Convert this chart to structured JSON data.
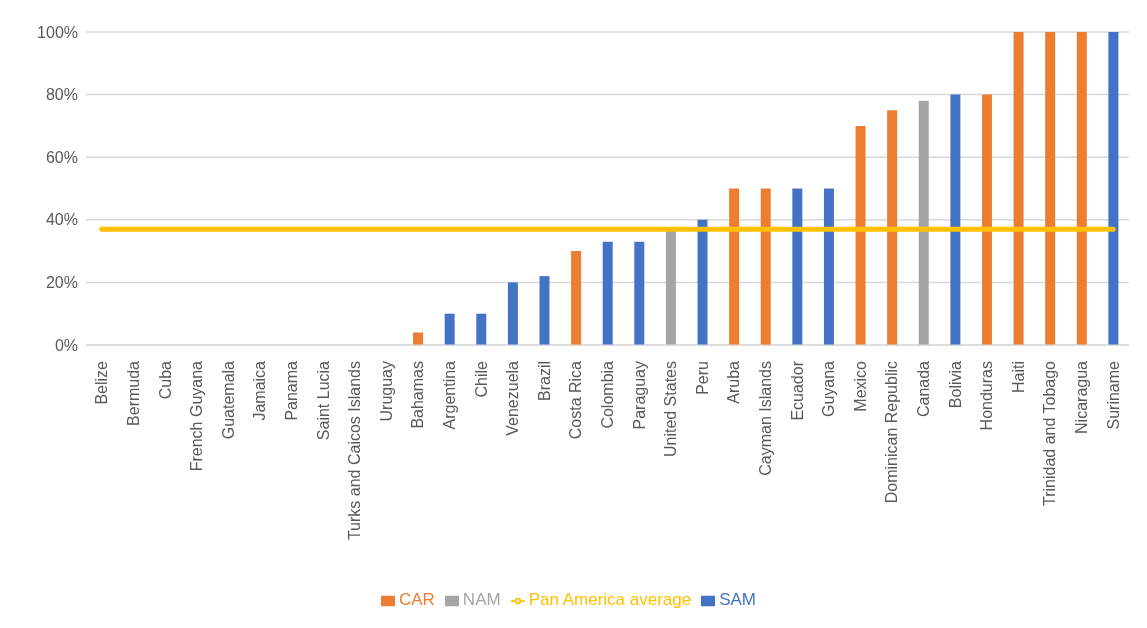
{
  "chart_data": {
    "type": "bar",
    "stacked": true,
    "categories": [
      "Belize",
      "Bermuda",
      "Cuba",
      "French Guyana",
      "Guatemala",
      "Jamaica",
      "Panama",
      "Saint Lucia",
      "Turks and Caicos Islands",
      "Uruguay",
      "Bahamas",
      "Argentina",
      "Chile",
      "Venezuela",
      "Brazil",
      "Costa Rica",
      "Colombia",
      "Paraguay",
      "United States",
      "Peru",
      "Aruba",
      "Cayman Islands",
      "Ecuador",
      "Guyana",
      "Mexico",
      "Dominican Republic",
      "Canada",
      "Bolivia",
      "Honduras",
      "Haiti",
      "Trinidad and Tobago",
      "Nicaragua",
      "Suriname"
    ],
    "series": [
      {
        "name": "SAM",
        "color": "#4472c4",
        "values": [
          null,
          null,
          null,
          0,
          null,
          null,
          null,
          null,
          null,
          0,
          null,
          10,
          10,
          20,
          22,
          null,
          33,
          33,
          null,
          40,
          null,
          null,
          50,
          50,
          null,
          null,
          null,
          80,
          null,
          null,
          null,
          null,
          100
        ]
      },
      {
        "name": "CAR",
        "color": "#ed7d31",
        "values": [
          0,
          0,
          0,
          null,
          0,
          0,
          0,
          0,
          0,
          null,
          4,
          null,
          null,
          null,
          null,
          30,
          null,
          null,
          null,
          null,
          50,
          50,
          null,
          null,
          70,
          75,
          null,
          null,
          80,
          100,
          100,
          100,
          null
        ]
      },
      {
        "name": "NAM",
        "color": "#a5a5a5",
        "values": [
          null,
          null,
          null,
          null,
          null,
          null,
          null,
          null,
          null,
          null,
          null,
          null,
          null,
          null,
          null,
          null,
          null,
          null,
          37,
          null,
          null,
          null,
          null,
          null,
          null,
          null,
          78,
          null,
          null,
          null,
          null,
          null,
          null
        ]
      },
      {
        "name": "Pan America average",
        "type": "line",
        "color": "#ffc000",
        "values": [
          37,
          37,
          37,
          37,
          37,
          37,
          37,
          37,
          37,
          37,
          37,
          37,
          37,
          37,
          37,
          37,
          37,
          37,
          37,
          37,
          37,
          37,
          37,
          37,
          37,
          37,
          37,
          37,
          37,
          37,
          37,
          37,
          37
        ]
      }
    ],
    "ylim": [
      0,
      100
    ],
    "yticks": [
      {
        "value": 0,
        "label": "0%"
      },
      {
        "value": 20,
        "label": "20%"
      },
      {
        "value": 40,
        "label": "40%"
      },
      {
        "value": 60,
        "label": "60%"
      },
      {
        "value": 80,
        "label": "80%"
      },
      {
        "value": 100,
        "label": "100%"
      }
    ],
    "grid": "y",
    "legend": "bottom",
    "marker": "none",
    "line_style": "solid"
  }
}
